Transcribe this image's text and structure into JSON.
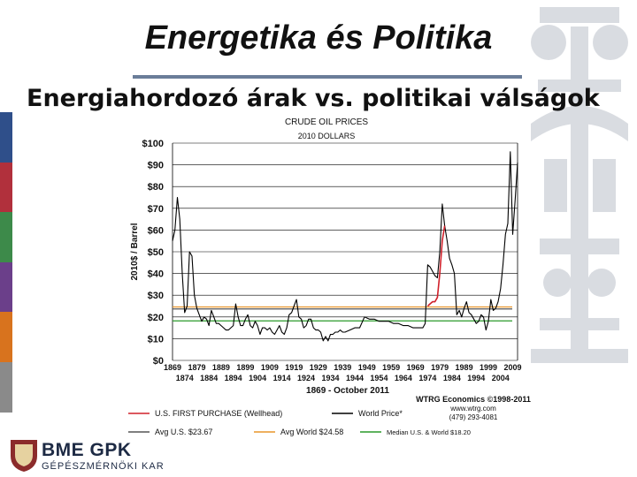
{
  "slide": {
    "title": "Energetika és Politika",
    "subtitle": "Energiahordozó árak vs. politikai válságok",
    "logo_text": "BME GPK",
    "logo_sub": "GÉPÉSZMÉRNÖKI KAR",
    "sidebar_colors": [
      "#2f4f8a",
      "#b1303c",
      "#3d8a4a",
      "#6b3f8a",
      "#d8731e",
      "#8a8a8a"
    ]
  },
  "chart_data": {
    "type": "line",
    "title": "CRUDE OIL PRICES",
    "subtitle": "2010 DOLLARS",
    "ylabel": "2010$ / Barrel",
    "xlabel": "1869 - October 2011",
    "ylim": [
      0,
      100
    ],
    "xlim": [
      1869,
      2011
    ],
    "y_ticks": [
      "$0",
      "$10",
      "$20",
      "$30",
      "$40",
      "$50",
      "$60",
      "$70",
      "$80",
      "$90",
      "$100"
    ],
    "x_ticks_top": [
      "1869",
      "1879",
      "1889",
      "1899",
      "1909",
      "1919",
      "1929",
      "1939",
      "1949",
      "1959",
      "1969",
      "1979",
      "1989",
      "1999",
      "2009"
    ],
    "x_ticks_bottom": [
      "1874",
      "1884",
      "1894",
      "1904",
      "1914",
      "1924",
      "1934",
      "1944",
      "1954",
      "1964",
      "1974",
      "1984",
      "1994",
      "2004"
    ],
    "source": [
      "WTRG Economics ©1998-2011",
      "www.wtrg.com",
      "(479) 293-4081"
    ],
    "series": [
      {
        "name": "World Price*",
        "color": "#000000",
        "x": [
          1869,
          1870,
          1871,
          1872,
          1873,
          1874,
          1875,
          1876,
          1877,
          1878,
          1879,
          1880,
          1881,
          1882,
          1883,
          1884,
          1885,
          1886,
          1887,
          1888,
          1889,
          1890,
          1891,
          1892,
          1893,
          1894,
          1895,
          1896,
          1897,
          1898,
          1899,
          1900,
          1901,
          1902,
          1903,
          1904,
          1905,
          1906,
          1907,
          1908,
          1909,
          1910,
          1911,
          1912,
          1913,
          1914,
          1915,
          1916,
          1917,
          1918,
          1919,
          1920,
          1921,
          1922,
          1923,
          1924,
          1925,
          1926,
          1927,
          1928,
          1929,
          1930,
          1931,
          1932,
          1933,
          1934,
          1935,
          1936,
          1937,
          1938,
          1939,
          1940,
          1942,
          1944,
          1946,
          1948,
          1950,
          1952,
          1954,
          1956,
          1958,
          1960,
          1962,
          1964,
          1966,
          1968,
          1970,
          1972,
          1973,
          1974,
          1975,
          1976,
          1977,
          1978,
          1979,
          1980,
          1981,
          1982,
          1983,
          1984,
          1985,
          1986,
          1987,
          1988,
          1989,
          1990,
          1991,
          1992,
          1993,
          1994,
          1995,
          1996,
          1997,
          1998,
          1999,
          2000,
          2001,
          2002,
          2003,
          2004,
          2005,
          2006,
          2007,
          2008,
          2009,
          2010,
          2011
        ],
        "y": [
          55,
          60,
          75,
          65,
          40,
          22,
          25,
          50,
          48,
          30,
          24,
          21,
          18,
          20,
          19,
          16,
          23,
          20,
          17,
          17,
          16,
          15,
          14,
          14,
          15,
          16,
          26,
          20,
          16,
          16,
          19,
          21,
          16,
          15,
          18,
          16,
          12,
          15,
          15,
          14,
          15,
          13,
          12,
          14,
          16,
          13,
          12,
          15,
          21,
          22,
          25,
          28,
          20,
          19,
          15,
          16,
          19,
          19,
          15,
          14,
          14,
          13,
          9,
          11,
          9,
          12,
          12,
          13,
          13,
          14,
          13,
          13,
          14,
          15,
          15,
          20,
          19,
          19,
          18,
          18,
          18,
          17,
          17,
          16,
          16,
          15,
          15,
          15,
          17,
          44,
          43,
          41,
          39,
          38,
          50,
          72,
          62,
          55,
          47,
          44,
          40,
          21,
          23,
          20,
          24,
          27,
          22,
          21,
          19,
          17,
          18,
          21,
          20,
          14,
          18,
          28,
          23,
          24,
          27,
          33,
          44,
          58,
          63,
          96,
          58,
          74,
          91
        ]
      },
      {
        "name": "U.S. FIRST PURCHASE (Wellhead)",
        "color": "#d0202a",
        "x": [
          1974,
          1975,
          1976,
          1977,
          1978,
          1979,
          1980,
          1981
        ],
        "y": [
          25,
          26,
          27,
          27,
          29,
          40,
          55,
          62
        ]
      }
    ],
    "hlines": [
      {
        "label": "Avg U.S. $23.67",
        "value": 23.67,
        "color": "#555555"
      },
      {
        "label": "Avg World $24.58",
        "value": 24.58,
        "color": "#e8952a"
      },
      {
        "label": "Median U.S. & World $18.20",
        "value": 18.2,
        "color": "#2a9a2a"
      }
    ],
    "legend": [
      {
        "label": "U.S. FIRST PURCHASE (Wellhead)",
        "color": "#d0202a"
      },
      {
        "label": "World Price*",
        "color": "#000000"
      },
      {
        "label": "Avg U.S. $23.67",
        "color": "#555555"
      },
      {
        "label": "Avg World $24.58",
        "color": "#e8952a"
      },
      {
        "label": "Median U.S. & World $18.20",
        "color": "#2a9a2a"
      }
    ]
  }
}
